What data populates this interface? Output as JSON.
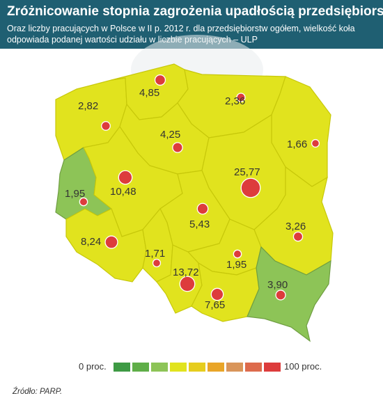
{
  "title": "Zróżnicowanie stopnia zagrożenia upadłością przedsiębiorstw",
  "subtitle": "Oraz liczby pracujących w Polsce w II p. 2012 r. dla przedsiębiorstw ogółem, wielkość koła odpowiada podanej wartości udziału w liczbie pracujących – ULP",
  "map": {
    "regions": [
      {
        "label": "2,82",
        "value": 2.82,
        "color": "yellow"
      },
      {
        "label": "4,85",
        "value": 4.85,
        "color": "yellow"
      },
      {
        "label": "2,36",
        "value": 2.36,
        "color": "yellow"
      },
      {
        "label": "4,25",
        "value": 4.25,
        "color": "yellow"
      },
      {
        "label": "1,66",
        "value": 1.66,
        "color": "yellow"
      },
      {
        "label": "1,95",
        "value": 1.95,
        "color": "green"
      },
      {
        "label": "10,48",
        "value": 10.48,
        "color": "yellow"
      },
      {
        "label": "25,77",
        "value": 25.77,
        "color": "yellow"
      },
      {
        "label": "5,43",
        "value": 5.43,
        "color": "yellow"
      },
      {
        "label": "3,26",
        "value": 3.26,
        "color": "yellow"
      },
      {
        "label": "8,24",
        "value": 8.24,
        "color": "yellow"
      },
      {
        "label": "1,71",
        "value": 1.71,
        "color": "yellow"
      },
      {
        "label": "1,95",
        "value": 1.95,
        "color": "yellow"
      },
      {
        "label": "13,72",
        "value": 13.72,
        "color": "yellow"
      },
      {
        "label": "7,65",
        "value": 7.65,
        "color": "yellow"
      },
      {
        "label": "3,90",
        "value": 3.9,
        "color": "green"
      }
    ],
    "colors": {
      "yellow": "#e1e31e",
      "green": "#8dc457",
      "dot": "#dd3c3c"
    }
  },
  "legend": {
    "min_label": "0 proc.",
    "max_label": "100 proc.",
    "colors": [
      "#3e9a44",
      "#5fae48",
      "#8dc457",
      "#e1e31e",
      "#e6cd1e",
      "#e9a528",
      "#d9955a",
      "#dd6b4c",
      "#dd3c3c"
    ]
  },
  "source": "Źródło: PARP."
}
